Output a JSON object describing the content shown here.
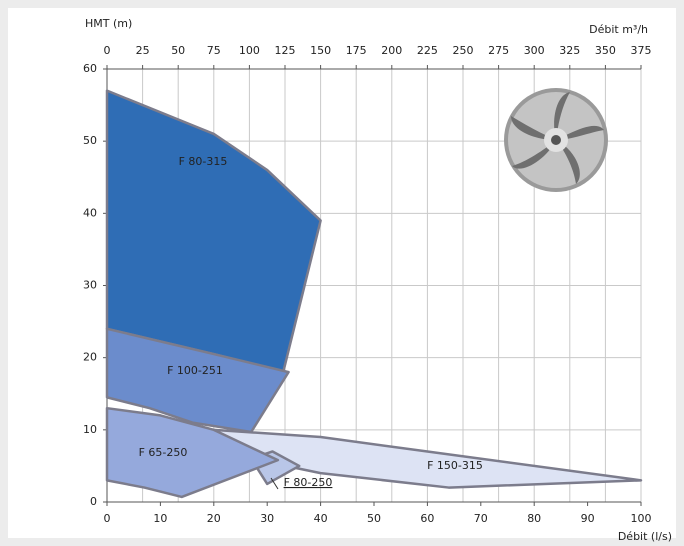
{
  "chart_data": {
    "type": "area",
    "y_label": "HMT (m)",
    "x2_label": "Débit m³/h",
    "x_label": "Débit (l/s)",
    "xlim": [
      0,
      100
    ],
    "xticks": [
      0,
      10,
      20,
      30,
      40,
      50,
      60,
      70,
      80,
      90,
      100
    ],
    "x2lim": [
      0,
      375
    ],
    "x2ticks": [
      0,
      25,
      50,
      75,
      100,
      125,
      150,
      175,
      200,
      225,
      250,
      275,
      300,
      325,
      350,
      375
    ],
    "ylim": [
      0,
      60
    ],
    "yticks": [
      0,
      10,
      20,
      30,
      40,
      50,
      60
    ],
    "grid": true,
    "series": [
      {
        "name": "F 150-315",
        "color": "#dde3f4",
        "x": [
          20,
          40,
          60,
          100,
          64,
          40,
          27
        ],
        "y": [
          10,
          9,
          7,
          3,
          2,
          4,
          6
        ]
      },
      {
        "name": "F 80-315",
        "color": "#2f6db5",
        "x": [
          0,
          20,
          30,
          40,
          33,
          20,
          0
        ],
        "y": [
          57,
          51,
          46,
          39,
          18,
          20.5,
          24
        ]
      },
      {
        "name": "F 100-251",
        "color": "#6b8ccc",
        "x": [
          0,
          20,
          34,
          27,
          16,
          8,
          0
        ],
        "y": [
          24,
          20.5,
          18,
          9.7,
          11,
          13,
          14.5
        ]
      },
      {
        "name": "F 80-250",
        "color": "#b9c6e8",
        "x": [
          27,
          31,
          36,
          30
        ],
        "y": [
          6,
          7,
          5,
          2.5
        ]
      },
      {
        "name": "F 65-250",
        "color": "#95a9dc",
        "x": [
          0,
          10,
          20,
          32,
          14,
          7,
          0
        ],
        "y": [
          13,
          12,
          10,
          5.8,
          0.7,
          2,
          3
        ]
      }
    ]
  }
}
